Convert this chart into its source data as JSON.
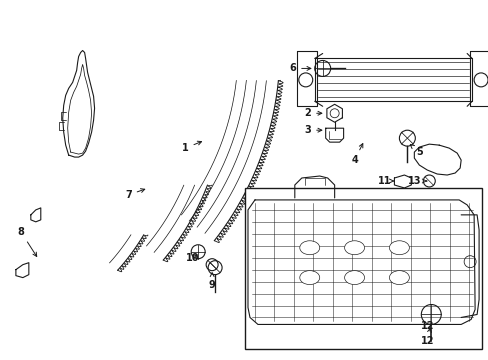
{
  "background_color": "#ffffff",
  "line_color": "#1a1a1a",
  "lw": 0.8,
  "fig_w": 4.89,
  "fig_h": 3.6,
  "dpi": 100,
  "labels": {
    "1": [
      185,
      148,
      205,
      138
    ],
    "2": [
      310,
      113,
      330,
      113
    ],
    "3": [
      310,
      128,
      330,
      128
    ],
    "4": [
      355,
      155,
      365,
      135
    ],
    "5": [
      425,
      148,
      410,
      138
    ],
    "6": [
      295,
      68,
      318,
      68
    ],
    "7": [
      130,
      192,
      148,
      182
    ],
    "8": [
      22,
      232,
      40,
      228
    ],
    "9": [
      215,
      278,
      215,
      260
    ],
    "10": [
      198,
      255,
      215,
      252
    ],
    "11": [
      388,
      180,
      400,
      180
    ],
    "12": [
      432,
      320,
      418,
      310
    ],
    "13": [
      415,
      180,
      400,
      180
    ]
  }
}
